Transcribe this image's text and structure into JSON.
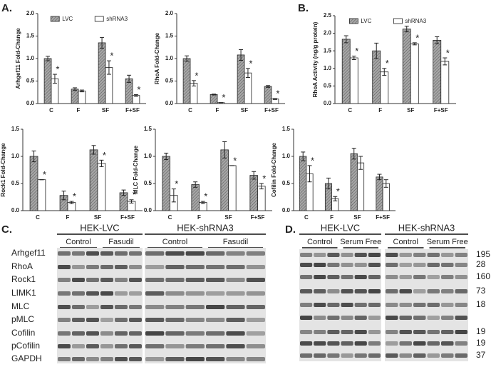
{
  "panel_labels": [
    "A.",
    "B.",
    "C.",
    "D."
  ],
  "chart_data": [
    {
      "type": "bar",
      "ylabel": "Arhgef11 Fold-Change",
      "categories": [
        "C",
        "F",
        "SF",
        "F+SF"
      ],
      "legend": "top",
      "series": [
        {
          "name": "LVC",
          "color": "#a6a6a6",
          "hatch": true,
          "values": [
            1.0,
            0.32,
            1.35,
            0.55
          ],
          "errors": [
            0.05,
            0.03,
            0.12,
            0.08
          ]
        },
        {
          "name": "shRNA3",
          "color": "#ffffff",
          "values": [
            0.55,
            0.28,
            0.8,
            0.18
          ],
          "errors": [
            0.1,
            0.02,
            0.15,
            0.02
          ]
        }
      ],
      "ylim": [
        0,
        2
      ],
      "yticks": [
        {
          "value": 0,
          "label": "0.0"
        },
        0.5,
        {
          "value": 1,
          "label": "1.0"
        },
        1.5,
        {
          "value": 2,
          "label": "2.0"
        }
      ],
      "annotations": [
        {
          "text": "*",
          "category": 0
        },
        {
          "text": "*",
          "category": 2
        },
        {
          "text": "*",
          "category": 3
        }
      ]
    },
    {
      "type": "bar",
      "ylabel": "RhoA Fold-Change",
      "categories": [
        "C",
        "F",
        "SF",
        "F+SF"
      ],
      "series": [
        {
          "color": "#a6a6a6",
          "hatch": true,
          "values": [
            1.0,
            0.2,
            1.08,
            0.38
          ],
          "errors": [
            0.06,
            0.01,
            0.12,
            0.02
          ]
        },
        {
          "color": "#ffffff",
          "values": [
            0.45,
            0.02,
            0.68,
            0.1
          ],
          "errors": [
            0.06,
            0,
            0.1,
            0.01
          ]
        }
      ],
      "ylim": [
        0,
        2
      ],
      "yticks": [
        {
          "value": 0,
          "label": "0.0"
        },
        0.5,
        {
          "value": 1,
          "label": "1.0"
        },
        1.5,
        {
          "value": 2,
          "label": "2.0"
        }
      ],
      "annotations": [
        {
          "text": "*",
          "category": 0
        },
        {
          "text": "*",
          "category": 1
        },
        {
          "text": "*",
          "category": 2
        },
        {
          "text": "*",
          "category": 3
        }
      ]
    },
    {
      "type": "bar",
      "ylabel": "RhoA Activity (ng/g protein)",
      "categories": [
        "C",
        "F",
        "SF",
        "F+SF"
      ],
      "legend": "top",
      "series": [
        {
          "name": "LVC",
          "color": "#a6a6a6",
          "hatch": true,
          "values": [
            1.83,
            1.5,
            2.12,
            1.8
          ],
          "errors": [
            0.1,
            0.22,
            0.08,
            0.1
          ]
        },
        {
          "name": "shRNA3",
          "color": "#ffffff",
          "values": [
            1.3,
            0.9,
            1.7,
            1.2
          ],
          "errors": [
            0.05,
            0.1,
            0.03,
            0.1
          ]
        }
      ],
      "ylim": [
        0,
        2.5
      ],
      "yticks": [
        {
          "value": 0,
          "label": "0.0"
        },
        0.5,
        {
          "value": 1,
          "label": "1.0"
        },
        1.5,
        {
          "value": 2,
          "label": "2.0"
        },
        2.5
      ],
      "annotations": [
        {
          "text": "*",
          "category": 0
        },
        {
          "text": "*",
          "category": 1
        },
        {
          "text": "*",
          "category": 2
        },
        {
          "text": "*",
          "category": 3
        }
      ]
    },
    {
      "type": "bar",
      "ylabel": "Rock1 Fold-Change",
      "categories": [
        "C",
        "F",
        "SF",
        "F+SF"
      ],
      "series": [
        {
          "color": "#a6a6a6",
          "hatch": true,
          "values": [
            1.0,
            0.28,
            1.12,
            0.33
          ],
          "errors": [
            0.1,
            0.08,
            0.08,
            0.05
          ]
        },
        {
          "color": "#ffffff",
          "values": [
            0.57,
            0.15,
            0.87,
            0.17
          ],
          "errors": [
            0,
            0.02,
            0.06,
            0.03
          ]
        }
      ],
      "ylim": [
        0,
        1.5
      ],
      "yticks": [
        {
          "value": 0,
          "label": "0.0"
        },
        0.5,
        {
          "value": 1,
          "label": "1.0"
        },
        1.5
      ],
      "annotations": [
        {
          "text": "*",
          "category": 0
        },
        {
          "text": "*",
          "category": 1
        },
        {
          "text": "*",
          "category": 2
        },
        {
          "text": "*",
          "category": 3
        }
      ]
    },
    {
      "type": "bar",
      "ylabel": "MLC Fold-Change",
      "categories": [
        "C",
        "F",
        "SF",
        "F+SF"
      ],
      "series": [
        {
          "color": "#a6a6a6",
          "hatch": true,
          "values": [
            1.0,
            0.48,
            1.12,
            0.65
          ],
          "errors": [
            0.06,
            0.05,
            0.15,
            0.07
          ]
        },
        {
          "color": "#ffffff",
          "values": [
            0.28,
            0.15,
            0.83,
            0.45
          ],
          "errors": [
            0.12,
            0.02,
            0,
            0.05
          ]
        }
      ],
      "ylim": [
        0,
        1.5
      ],
      "yticks": [
        {
          "value": 0,
          "label": "0.0"
        },
        0.5,
        {
          "value": 1,
          "label": "1.0"
        },
        1.5
      ],
      "annotations": [
        {
          "text": "*",
          "category": 0
        },
        {
          "text": "*",
          "category": 1
        },
        {
          "text": "*",
          "category": 2
        },
        {
          "text": "*",
          "category": 3
        }
      ]
    },
    {
      "type": "bar",
      "ylabel": "Cofilin Fold-Change",
      "categories": [
        "C",
        "F",
        "SF",
        "F+SF"
      ],
      "series": [
        {
          "color": "#a6a6a6",
          "hatch": true,
          "values": [
            1.0,
            0.5,
            1.05,
            0.62
          ],
          "errors": [
            0.08,
            0.1,
            0.1,
            0.05
          ]
        },
        {
          "color": "#ffffff",
          "values": [
            0.68,
            0.22,
            0.88,
            0.5
          ],
          "errors": [
            0.15,
            0.04,
            0.12,
            0.07
          ]
        }
      ],
      "ylim": [
        0,
        1.5
      ],
      "yticks": [
        {
          "value": 0,
          "label": "0.0"
        },
        0.5,
        {
          "value": 1,
          "label": "1.0"
        },
        1.5
      ],
      "annotations": [
        {
          "text": "*",
          "category": 0
        },
        {
          "text": "*",
          "category": 1
        }
      ]
    }
  ],
  "blots": [
    {
      "groups": [
        "HEK-LVC",
        "HEK-shRNA3"
      ],
      "subgroups": [
        "Control",
        "Fasudil",
        "Control",
        "Fasudil"
      ],
      "rows": [
        "Arhgef11",
        "RhoA",
        "Rock1",
        "LIMK1",
        "MLC",
        "pMLC",
        "Cofilin",
        "pCofilin",
        "GAPDH"
      ]
    },
    {
      "groups": [
        "HEK-LVC",
        "HEK-shRNA3"
      ],
      "subgroups": [
        "Control",
        "Serum Free",
        "Control",
        "Serum Free"
      ],
      "sizes": [
        195,
        28,
        160,
        73,
        18,
        null,
        19,
        19,
        37
      ]
    }
  ]
}
